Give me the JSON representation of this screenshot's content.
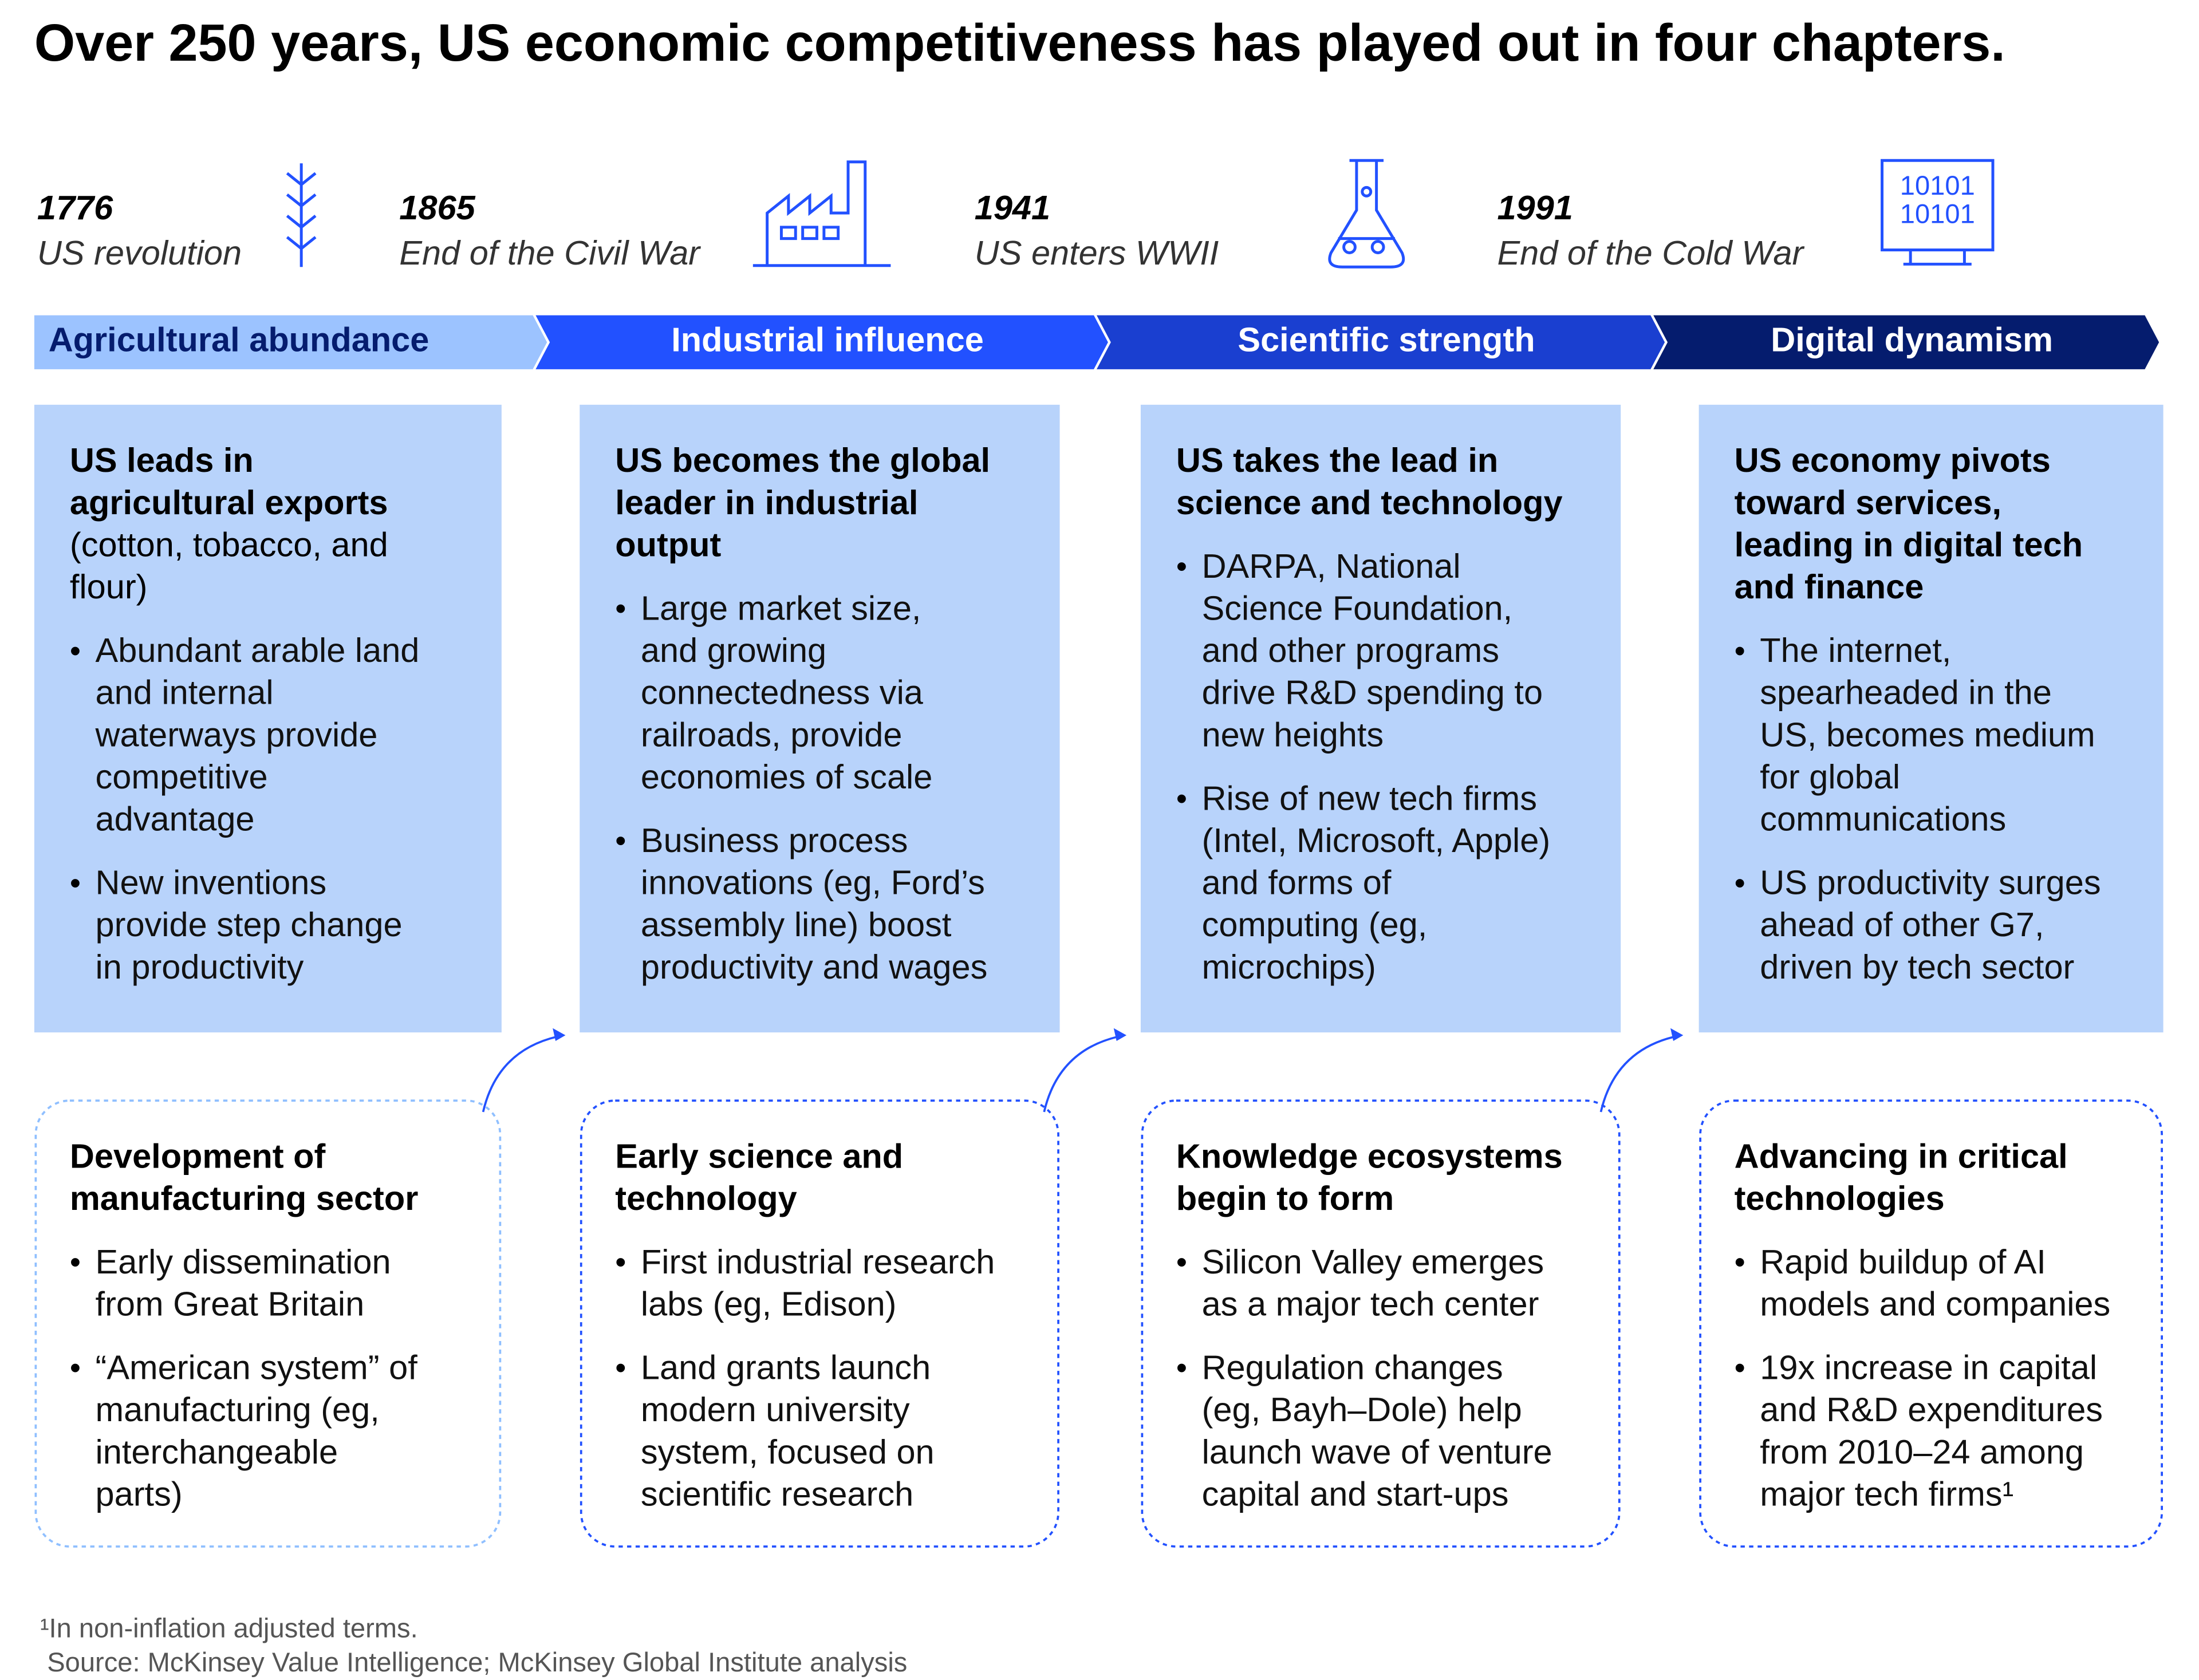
{
  "title": "Over 250 years, US economic competitiveness has played out in four chapters.",
  "milestones": [
    {
      "year": "1776",
      "event": "US revolution"
    },
    {
      "year": "1865",
      "event": "End of the Civil War"
    },
    {
      "year": "1941",
      "event": "US enters WWII"
    },
    {
      "year": "1991",
      "event": "End of the Cold War"
    }
  ],
  "icon_text": [
    "10101",
    "10101"
  ],
  "chapters": [
    "Agricultural abundance",
    "Industrial influence",
    "Scientific strength",
    "Digital dynamism"
  ],
  "leads": [
    {
      "heading": [
        "US leads in",
        "agricultural exports"
      ],
      "note": [
        "(cotton, tobacco, and",
        "flour)"
      ],
      "bullets": [
        [
          "Abundant arable land",
          "and internal",
          "waterways provide",
          "competitive",
          "advantage"
        ],
        [
          "New inventions",
          "provide step change",
          "in productivity"
        ]
      ]
    },
    {
      "heading": [
        "US becomes the global",
        "leader in industrial",
        "output"
      ],
      "bullets": [
        [
          "Large market size,",
          "and growing",
          "connectedness via",
          "railroads, provide",
          "economies of scale"
        ],
        [
          "Business process",
          "innovations (eg, Ford’s",
          "assembly line) boost",
          "productivity and wages"
        ]
      ]
    },
    {
      "heading": [
        "US takes the lead in",
        "science and technology"
      ],
      "bullets": [
        [
          "DARPA, National",
          "Science Foundation,",
          "and other programs",
          "drive R&D spending to",
          "new heights"
        ],
        [
          "Rise of new tech firms",
          "(Intel, Microsoft, Apple)",
          "and forms of",
          "computing (eg,",
          "microchips)"
        ]
      ]
    },
    {
      "heading": [
        "US economy pivots",
        "toward services,",
        "leading in digital tech",
        "and finance"
      ],
      "bullets": [
        [
          "The internet,",
          "spearheaded in the",
          "US, becomes medium",
          "for global",
          "communications"
        ],
        [
          "US productivity surges",
          "ahead of other G7,",
          "driven by tech sector"
        ]
      ]
    }
  ],
  "foundations": [
    {
      "heading": [
        "Development of",
        "manufacturing sector"
      ],
      "bullets": [
        [
          "Early dissemination",
          "from Great Britain"
        ],
        [
          "“American system” of",
          "manufacturing (eg,",
          "interchangeable",
          "parts)"
        ]
      ]
    },
    {
      "heading": [
        "Early science and",
        "technology"
      ],
      "bullets": [
        [
          "First industrial research",
          "labs (eg, Edison)"
        ],
        [
          "Land grants launch",
          "modern university",
          "system, focused on",
          "scientific research"
        ]
      ]
    },
    {
      "heading": [
        "Knowledge ecosystems",
        "begin to form"
      ],
      "bullets": [
        [
          "Silicon Valley emerges",
          "as a major tech center"
        ],
        [
          "Regulation changes",
          "(eg, Bayh–Dole) help",
          "launch wave of venture",
          "capital and start-ups"
        ]
      ]
    },
    {
      "heading": [
        "Advancing in critical",
        "technologies"
      ],
      "bullets": [
        [
          "Rapid buildup of AI",
          "models and companies"
        ],
        [
          "19x increase in capital",
          "and R&D expenditures",
          "from 2010–24 among",
          "major tech firms¹"
        ]
      ]
    }
  ],
  "footnotes": [
    "¹In non-inflation adjusted terms.",
    "Source: McKinsey Value Intelligence; McKinsey Global Institute analysis"
  ]
}
